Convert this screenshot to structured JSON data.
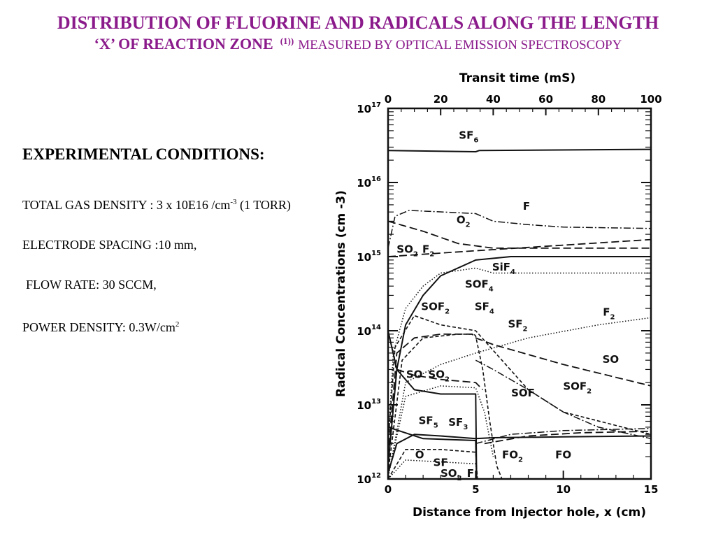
{
  "slide": {
    "title_line1": "DISTRIBUTION OF FLUORINE AND RADICALS ALONG THE LENGTH",
    "title_line2_main": "‘X’ OF REACTION ZONE",
    "title_ref": "(1))",
    "title_line2_tail": "MEASURED BY OPTICAL EMISSION SPECTROSCOPY"
  },
  "conditions": {
    "heading": "EXPERIMENTAL CONDITIONS:",
    "gas_density_prefix": "TOTAL GAS DENSITY : 3 x 10E16 /cm",
    "gas_density_exp": "-3",
    "gas_density_suffix": " (1 TORR)",
    "electrode": "ELECTRODE SPACING :10 mm,",
    "flow": "FLOW RATE: 30 SCCM,",
    "power_prefix": "POWER DENSITY: 0.3W/cm",
    "power_exp": "2"
  },
  "chart_data": {
    "type": "line",
    "title": "",
    "top_axis_label": "Transit time (mS)",
    "top_ticks": [
      0,
      20,
      40,
      60,
      80,
      100
    ],
    "xlabel": "Distance from Injector hole, x (cm)",
    "ylabel": "Radical Concentrations (cm -3)",
    "x_ticks": [
      0,
      5,
      10,
      15
    ],
    "xlim": [
      0,
      15
    ],
    "ylim": [
      1000000000000.0,
      1e+17
    ],
    "y_scale": "log",
    "y_tick_labels": [
      {
        "base": "10",
        "exp": "17"
      },
      {
        "base": "10",
        "exp": "16"
      },
      {
        "base": "10",
        "exp": "15"
      },
      {
        "base": "10",
        "exp": "14"
      },
      {
        "base": "10",
        "exp": "13"
      },
      {
        "base": "10",
        "exp": "12"
      }
    ],
    "series": [
      {
        "name": "SF6",
        "style": "solid",
        "points": [
          [
            0,
            2.7e+16
          ],
          [
            5,
            2.6e+16
          ],
          [
            5.2,
            2.7e+16
          ],
          [
            15,
            2.8e+16
          ]
        ]
      },
      {
        "name": "F",
        "style": "dashdot",
        "points": [
          [
            0,
            1300000000000000.0
          ],
          [
            0.4,
            3500000000000000.0
          ],
          [
            1.2,
            4200000000000000.0
          ],
          [
            5,
            3800000000000000.0
          ],
          [
            6,
            3000000000000000.0
          ],
          [
            8,
            2700000000000000.0
          ],
          [
            10,
            2500000000000000.0
          ],
          [
            15,
            2400000000000000.0
          ]
        ]
      },
      {
        "name": "O2",
        "style": "longdash",
        "points": [
          [
            0,
            3000000000000000.0
          ],
          [
            2,
            2200000000000000.0
          ],
          [
            4,
            1500000000000000.0
          ],
          [
            6,
            1300000000000000.0
          ],
          [
            10,
            1300000000000000.0
          ],
          [
            15,
            1300000000000000.0
          ]
        ]
      },
      {
        "name": "SO2F2",
        "style": "longdash",
        "points": [
          [
            0,
            1000000000000000.0
          ],
          [
            5,
            1200000000000000.0
          ],
          [
            15,
            1700000000000000.0
          ]
        ]
      },
      {
        "name": "SiF4",
        "style": "solid",
        "points": [
          [
            0,
            1500000000000.0
          ],
          [
            0.5,
            30000000000000.0
          ],
          [
            1,
            120000000000000.0
          ],
          [
            2,
            300000000000000.0
          ],
          [
            3,
            550000000000000.0
          ],
          [
            5,
            900000000000000.0
          ],
          [
            7,
            1000000000000000.0
          ],
          [
            15,
            1000000000000000.0
          ]
        ]
      },
      {
        "name": "SOF4",
        "style": "dotted",
        "points": [
          [
            0,
            3000000000000.0
          ],
          [
            0.3,
            50000000000000.0
          ],
          [
            1,
            200000000000000.0
          ],
          [
            2,
            400000000000000.0
          ],
          [
            3,
            600000000000000.0
          ],
          [
            5,
            700000000000000.0
          ],
          [
            6,
            600000000000000.0
          ],
          [
            15,
            600000000000000.0
          ]
        ]
      },
      {
        "name": "SOF2",
        "style": "shortdash",
        "points": [
          [
            0,
            3000000000000.0
          ],
          [
            0.4,
            60000000000000.0
          ],
          [
            1.5,
            160000000000000.0
          ],
          [
            3,
            120000000000000.0
          ],
          [
            5,
            100000000000000.0
          ],
          [
            6.5,
            40000000000000.0
          ],
          [
            8,
            16000000000000.0
          ],
          [
            10,
            8000000000000.0
          ],
          [
            15,
            4000000000000.0
          ]
        ]
      },
      {
        "name": "SF4",
        "style": "longdash",
        "points": [
          [
            0,
            2000000000000.0
          ],
          [
            0.5,
            50000000000000.0
          ],
          [
            1.5,
            80000000000000.0
          ],
          [
            3,
            90000000000000.0
          ],
          [
            4.8,
            90000000000000.0
          ],
          [
            5,
            80000000000000.0
          ],
          [
            6,
            65000000000000.0
          ],
          [
            10,
            35000000000000.0
          ],
          [
            15,
            18000000000000.0
          ]
        ]
      },
      {
        "name": "SF2",
        "style": "shortdash",
        "points": [
          [
            0,
            1200000000000.0
          ],
          [
            0.8,
            40000000000000.0
          ],
          [
            2,
            80000000000000.0
          ],
          [
            4,
            90000000000000.0
          ],
          [
            4.9,
            90000000000000.0
          ],
          [
            5,
            85000000000000.0
          ],
          [
            5.4,
            30000000000000.0
          ],
          [
            5.8,
            6000000000000.0
          ],
          [
            6.2,
            1500000000000.0
          ],
          [
            6.5,
            1000000000000.0
          ]
        ]
      },
      {
        "name": "F2",
        "style": "dotted",
        "points": [
          [
            0,
            1000000000000.0
          ],
          [
            1,
            20000000000000.0
          ],
          [
            3,
            35000000000000.0
          ],
          [
            5,
            50000000000000.0
          ],
          [
            8,
            80000000000000.0
          ],
          [
            12,
            120000000000000.0
          ],
          [
            15,
            150000000000000.0
          ]
        ]
      },
      {
        "name": "SO",
        "style": "longdash",
        "points": [
          [
            0.5,
            30000000000000.0
          ],
          [
            1.5,
            25000000000000.0
          ],
          [
            3,
            22000000000000.0
          ],
          [
            5,
            20000000000000.0
          ],
          [
            5.4,
            16000000000000.0
          ]
        ]
      },
      {
        "name": "SO2",
        "style": "dotted",
        "points": [
          [
            0,
            1100000000000.0
          ],
          [
            1,
            13000000000000.0
          ],
          [
            3,
            18000000000000.0
          ],
          [
            5,
            17000000000000.0
          ],
          [
            5.5,
            8000000000000.0
          ],
          [
            6,
            2000000000000.0
          ]
        ]
      },
      {
        "name": "SOF",
        "style": "dashdot",
        "points": [
          [
            5,
            40000000000000.0
          ],
          [
            6,
            30000000000000.0
          ],
          [
            8,
            16000000000000.0
          ],
          [
            10,
            8000000000000.0
          ],
          [
            12,
            5000000000000.0
          ],
          [
            15,
            3500000000000.0
          ]
        ]
      },
      {
        "name": "SF5",
        "style": "solid",
        "points": [
          [
            0,
            100000000000000.0
          ],
          [
            0.5,
            30000000000000.0
          ],
          [
            1.5,
            16000000000000.0
          ],
          [
            3,
            14000000000000.0
          ],
          [
            5,
            14000000000000.0
          ],
          [
            5.05,
            1000000000000.0
          ]
        ]
      },
      {
        "name": "SF3",
        "style": "solid",
        "points": [
          [
            0,
            5000000000000.0
          ],
          [
            2,
            3500000000000.0
          ],
          [
            5,
            3300000000000.0
          ],
          [
            5.05,
            1000000000000.0
          ]
        ]
      },
      {
        "name": "O",
        "style": "solid",
        "points": [
          [
            0,
            1200000000000.0
          ],
          [
            0.5,
            3000000000000.0
          ],
          [
            1.5,
            4000000000000.0
          ],
          [
            3,
            3800000000000.0
          ],
          [
            5,
            3500000000000.0
          ],
          [
            6,
            3600000000000.0
          ],
          [
            10,
            3700000000000.0
          ],
          [
            15,
            3800000000000.0
          ]
        ]
      },
      {
        "name": "FO2",
        "style": "dashdot",
        "points": [
          [
            5,
            3000000000000.0
          ],
          [
            7,
            4000000000000.0
          ],
          [
            10,
            4500000000000.0
          ],
          [
            15,
            4800000000000.0
          ]
        ]
      },
      {
        "name": "FO",
        "style": "longdash",
        "points": [
          [
            5.5,
            3000000000000.0
          ],
          [
            8,
            3800000000000.0
          ],
          [
            11,
            4200000000000.0
          ],
          [
            15,
            4400000000000.0
          ]
        ]
      },
      {
        "name": "SF",
        "style": "shortdash",
        "points": [
          [
            0,
            1000000000000.0
          ],
          [
            1,
            2500000000000.0
          ],
          [
            3,
            2500000000000.0
          ],
          [
            5,
            2300000000000.0
          ],
          [
            5.1,
            1000000000000.0
          ]
        ]
      },
      {
        "name": "SO2F",
        "style": "dotted",
        "points": [
          [
            0,
            1000000000000.0
          ],
          [
            1,
            1800000000000.0
          ],
          [
            3,
            1700000000000.0
          ],
          [
            5,
            1600000000000.0
          ],
          [
            5.1,
            1000000000000.0
          ]
        ]
      }
    ],
    "annotations": [
      {
        "text": "SF",
        "sub": "6",
        "x": 4.6,
        "y": 3.9e+16
      },
      {
        "text": "F",
        "sub": "",
        "x": 7.9,
        "y": 4300000000000000.0
      },
      {
        "text": "O",
        "sub": "2",
        "x": 4.3,
        "y": 2800000000000000.0
      },
      {
        "text": "SO",
        "sub": "2",
        "x": 1.1,
        "y": 1130000000000000.0
      },
      {
        "text": "F",
        "sub": "2",
        "x": 2.3,
        "y": 1130000000000000.0
      },
      {
        "text": "SiF",
        "sub": "4",
        "x": 6.6,
        "y": 650000000000000.0
      },
      {
        "text": "SOF",
        "sub": "4",
        "x": 5.2,
        "y": 380000000000000.0
      },
      {
        "text": "SOF",
        "sub": "2",
        "x": 2.7,
        "y": 190000000000000.0
      },
      {
        "text": "SF",
        "sub": "4",
        "x": 5.5,
        "y": 190000000000000.0
      },
      {
        "text": "SF",
        "sub": "2",
        "x": 7.4,
        "y": 110000000000000.0
      },
      {
        "text": "F",
        "sub": "2",
        "x": 12.6,
        "y": 160000000000000.0
      },
      {
        "text": "SO",
        "sub": "",
        "x": 12.7,
        "y": 37000000000000.0
      },
      {
        "text": "SO",
        "sub": "",
        "x": 1.5,
        "y": 23000000000000.0
      },
      {
        "text": "SO",
        "sub": "2",
        "x": 2.9,
        "y": 23000000000000.0
      },
      {
        "text": "SOF",
        "sub": "",
        "x": 7.7,
        "y": 13000000000000.0
      },
      {
        "text": "SOF",
        "sub": "2",
        "x": 10.8,
        "y": 16000000000000.0
      },
      {
        "text": "SF",
        "sub": "5",
        "x": 2.3,
        "y": 5500000000000.0
      },
      {
        "text": "SF",
        "sub": "3",
        "x": 4,
        "y": 5200000000000.0
      },
      {
        "text": "O",
        "sub": "",
        "x": 1.8,
        "y": 1900000000000.0
      },
      {
        "text": "FO",
        "sub": "2",
        "x": 7.1,
        "y": 1900000000000.0
      },
      {
        "text": "FO",
        "sub": "",
        "x": 10,
        "y": 1900000000000.0
      },
      {
        "text": "SF",
        "sub": "",
        "x": 3,
        "y": 1500000000000.0
      },
      {
        "text": "SO",
        "sub": "2",
        "x": 3.6,
        "y": 1070000000000.0
      },
      {
        "text": "F",
        "sub": "",
        "x": 4.7,
        "y": 1070000000000.0
      }
    ]
  }
}
